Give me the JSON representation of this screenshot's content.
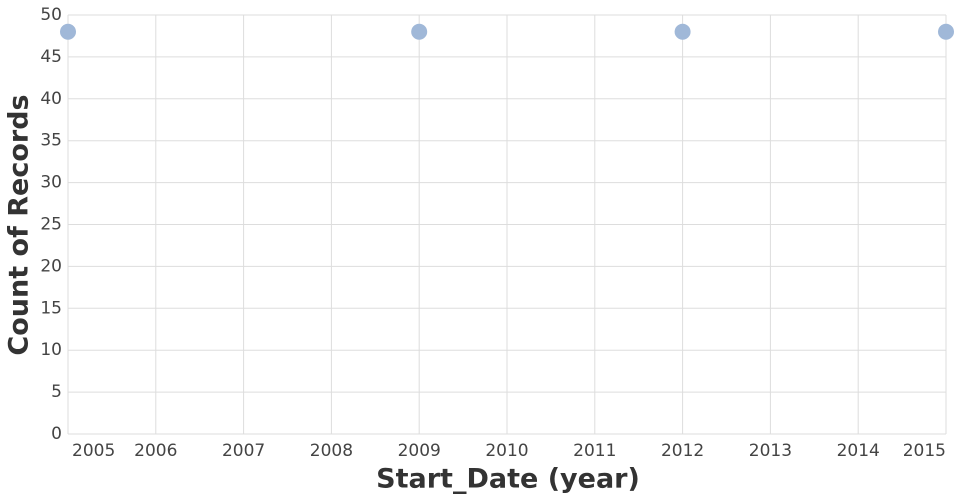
{
  "chart_data": {
    "type": "scatter",
    "x_label": "Start_Date (year)",
    "y_label": "Count of Records",
    "x": [
      2005,
      2009,
      2012,
      2015
    ],
    "values": [
      48,
      48,
      48,
      48
    ],
    "color": "#a0b8d8",
    "xlim": [
      2005,
      2015
    ],
    "xticks": [
      2005,
      2006,
      2007,
      2008,
      2009,
      2010,
      2011,
      2012,
      2013,
      2014,
      2015
    ],
    "ylim": [
      0,
      50
    ],
    "yticks": [
      0,
      5,
      10,
      15,
      20,
      25,
      30,
      35,
      40,
      45,
      50
    ],
    "grid": true
  }
}
